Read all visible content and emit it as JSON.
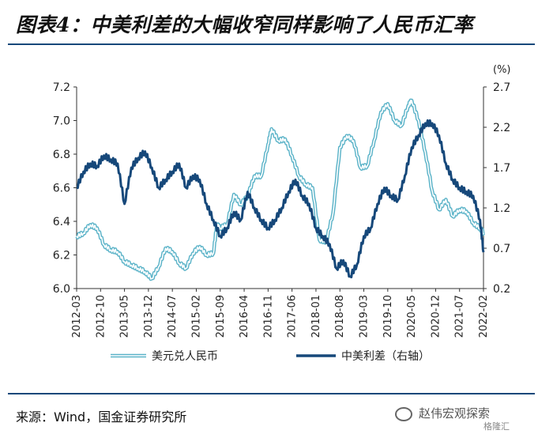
{
  "figure": {
    "title": "图表4：中美利差的大幅收窄同样影响了人民币汇率",
    "source": "来源：Wind，国金证券研究所",
    "watermark": "赵伟宏观探索",
    "watermark_badge": "格隆汇"
  },
  "colors": {
    "usdcny": "#5bb3c8",
    "spread": "#16487a",
    "rule": "#16487a",
    "axis": "#333333"
  },
  "chart_data": {
    "type": "line",
    "title": "",
    "xlabel": "",
    "ylabel": "",
    "y2label": "(%)",
    "x_ticks": [
      "2012-03",
      "2012-10",
      "2013-05",
      "2013-12",
      "2014-07",
      "2015-02",
      "2015-09",
      "2016-04",
      "2016-11",
      "2017-06",
      "2018-01",
      "2018-08",
      "2019-03",
      "2019-10",
      "2020-05",
      "2020-12",
      "2021-07",
      "2022-02"
    ],
    "ylim_left": [
      6.0,
      7.2
    ],
    "yticks_left": [
      "6.0",
      "6.2",
      "6.4",
      "6.6",
      "6.8",
      "7.0",
      "7.2"
    ],
    "ylim_right": [
      0.2,
      2.7
    ],
    "yticks_right": [
      "0.2",
      "0.7",
      "1.2",
      "1.7",
      "2.2",
      "2.7"
    ],
    "grid": false,
    "legend_position": "bottom",
    "series": [
      {
        "name": "美元兑人民币",
        "axis": "left",
        "style": "double-line",
        "x": [
          "2012-03",
          "2012-05",
          "2012-07",
          "2012-09",
          "2012-11",
          "2013-01",
          "2013-03",
          "2013-05",
          "2013-07",
          "2013-09",
          "2013-11",
          "2014-01",
          "2014-03",
          "2014-05",
          "2014-07",
          "2014-09",
          "2014-11",
          "2015-01",
          "2015-03",
          "2015-05",
          "2015-07",
          "2015-08",
          "2015-09",
          "2015-11",
          "2016-01",
          "2016-03",
          "2016-05",
          "2016-07",
          "2016-09",
          "2016-11",
          "2016-12",
          "2017-02",
          "2017-04",
          "2017-06",
          "2017-08",
          "2017-10",
          "2017-12",
          "2018-02",
          "2018-04",
          "2018-06",
          "2018-08",
          "2018-10",
          "2018-12",
          "2019-02",
          "2019-04",
          "2019-06",
          "2019-08",
          "2019-10",
          "2019-12",
          "2020-02",
          "2020-04",
          "2020-05",
          "2020-07",
          "2020-09",
          "2020-11",
          "2021-01",
          "2021-03",
          "2021-05",
          "2021-07",
          "2021-09",
          "2021-11",
          "2022-01",
          "2022-02"
        ],
        "values": [
          6.31,
          6.33,
          6.38,
          6.36,
          6.26,
          6.23,
          6.22,
          6.16,
          6.14,
          6.12,
          6.1,
          6.06,
          6.13,
          6.24,
          6.22,
          6.15,
          6.12,
          6.21,
          6.25,
          6.2,
          6.21,
          6.38,
          6.36,
          6.38,
          6.56,
          6.5,
          6.55,
          6.67,
          6.67,
          6.86,
          6.95,
          6.88,
          6.89,
          6.79,
          6.67,
          6.62,
          6.6,
          6.29,
          6.28,
          6.45,
          6.84,
          6.91,
          6.88,
          6.72,
          6.73,
          6.88,
          7.05,
          7.1,
          7.0,
          6.97,
          7.09,
          7.12,
          7.0,
          6.81,
          6.58,
          6.47,
          6.53,
          6.43,
          6.47,
          6.46,
          6.39,
          6.36,
          6.33
        ]
      },
      {
        "name": "中美利差（右轴）",
        "axis": "right",
        "style": "solid",
        "x": [
          "2012-03",
          "2012-05",
          "2012-07",
          "2012-09",
          "2012-11",
          "2013-01",
          "2013-03",
          "2013-05",
          "2013-07",
          "2013-09",
          "2013-11",
          "2014-01",
          "2014-03",
          "2014-05",
          "2014-07",
          "2014-09",
          "2014-11",
          "2015-01",
          "2015-03",
          "2015-05",
          "2015-07",
          "2015-09",
          "2015-11",
          "2016-01",
          "2016-03",
          "2016-05",
          "2016-07",
          "2016-09",
          "2016-11",
          "2017-01",
          "2017-03",
          "2017-05",
          "2017-07",
          "2017-09",
          "2017-11",
          "2018-01",
          "2018-03",
          "2018-05",
          "2018-07",
          "2018-09",
          "2018-11",
          "2019-01",
          "2019-03",
          "2019-05",
          "2019-07",
          "2019-09",
          "2019-11",
          "2020-01",
          "2020-03",
          "2020-05",
          "2020-07",
          "2020-09",
          "2020-11",
          "2021-01",
          "2021-03",
          "2021-05",
          "2021-07",
          "2021-09",
          "2021-11",
          "2022-01",
          "2022-02"
        ],
        "values": [
          1.45,
          1.65,
          1.75,
          1.72,
          1.85,
          1.8,
          1.75,
          1.25,
          1.7,
          1.82,
          1.9,
          1.7,
          1.45,
          1.55,
          1.65,
          1.75,
          1.45,
          1.6,
          1.55,
          1.25,
          1.05,
          0.85,
          0.95,
          1.15,
          1.05,
          1.4,
          1.2,
          1.05,
          0.95,
          1.05,
          1.2,
          1.4,
          1.55,
          1.35,
          1.25,
          0.95,
          0.85,
          0.75,
          0.45,
          0.55,
          0.35,
          0.5,
          0.85,
          0.95,
          1.25,
          1.45,
          1.35,
          1.3,
          1.6,
          1.95,
          2.1,
          2.25,
          2.25,
          2.1,
          1.75,
          1.55,
          1.45,
          1.4,
          1.35,
          1.05,
          0.65
        ]
      }
    ]
  }
}
